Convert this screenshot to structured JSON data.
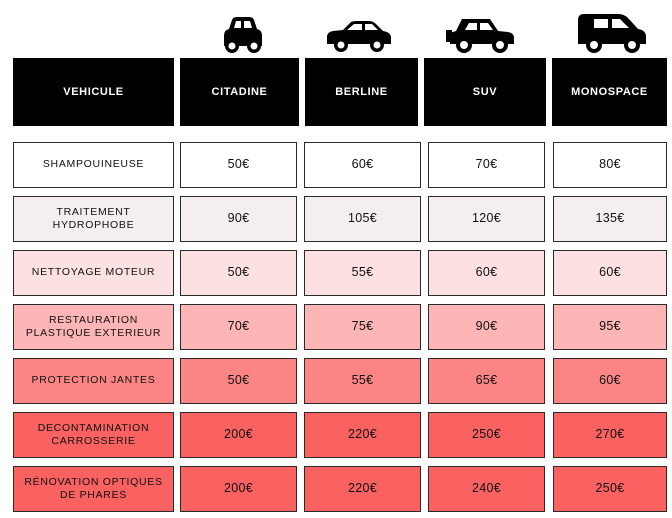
{
  "icons": [
    "compact-car-icon",
    "sedan-car-icon",
    "suv-car-icon",
    "minivan-car-icon"
  ],
  "headers": [
    "VEHICULE",
    "CITADINE",
    "BERLINE",
    "SUV",
    "MONOSPACE"
  ],
  "rows": [
    {
      "label": "SHAMPOUINEUSE",
      "prices": [
        "50€",
        "60€",
        "70€",
        "80€"
      ],
      "color": "#ffffff"
    },
    {
      "label": "TRAITEMENT HYDROPHOBE",
      "prices": [
        "90€",
        "105€",
        "120€",
        "135€"
      ],
      "color": "#f4eef3"
    },
    {
      "label": "NETTOYAGE MOTEUR",
      "prices": [
        "50€",
        "55€",
        "60€",
        "60€"
      ],
      "color": "#fde0e2"
    },
    {
      "label": "RESTAURATION PLASTIQUE EXTERIEUR",
      "prices": [
        "70€",
        "75€",
        "90€",
        "95€"
      ],
      "color": "#fdb5b6"
    },
    {
      "label": "PROTECTION JANTES",
      "prices": [
        "50€",
        "55€",
        "65€",
        "60€"
      ],
      "color": "#fb8584"
    },
    {
      "label": "DECONTAMINATION CARROSSERIE",
      "prices": [
        "200€",
        "220€",
        "250€",
        "270€"
      ],
      "color": "#fa6161"
    },
    {
      "label": "RÉNOVATION OPTIQUES DE PHARES",
      "prices": [
        "200€",
        "220€",
        "240€",
        "250€"
      ],
      "color": "#fa6161"
    }
  ]
}
